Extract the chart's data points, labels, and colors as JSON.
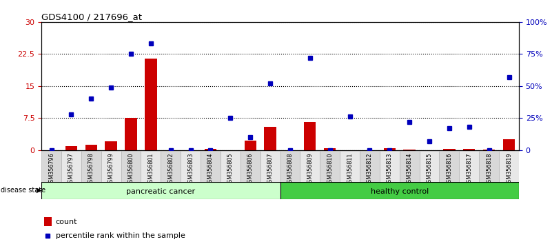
{
  "title": "GDS4100 / 217696_at",
  "samples": [
    "GSM356796",
    "GSM356797",
    "GSM356798",
    "GSM356799",
    "GSM356800",
    "GSM356801",
    "GSM356802",
    "GSM356803",
    "GSM356804",
    "GSM356805",
    "GSM356806",
    "GSM356807",
    "GSM356808",
    "GSM356809",
    "GSM356810",
    "GSM356811",
    "GSM356812",
    "GSM356813",
    "GSM356814",
    "GSM356815",
    "GSM356816",
    "GSM356817",
    "GSM356818",
    "GSM356819"
  ],
  "count": [
    0,
    1.0,
    1.3,
    2.0,
    7.5,
    21.5,
    0,
    0,
    0.3,
    0,
    2.2,
    5.5,
    0,
    6.5,
    0.5,
    0,
    0,
    0.4,
    0.1,
    0,
    0.3,
    0.3,
    0.1,
    2.5
  ],
  "percentile": [
    0,
    28,
    40,
    49,
    75,
    83,
    0,
    0,
    0,
    25,
    10,
    52,
    0,
    72,
    0,
    26,
    0,
    0,
    22,
    7,
    17,
    18,
    0,
    57
  ],
  "ylim_left": [
    0,
    30
  ],
  "ylim_right": [
    0,
    100
  ],
  "yticks_left": [
    0,
    7.5,
    15,
    22.5,
    30
  ],
  "yticks_right": [
    0,
    25,
    50,
    75,
    100
  ],
  "ytick_labels_left": [
    "0",
    "7.5",
    "15",
    "22.5",
    "30"
  ],
  "ytick_labels_right": [
    "0",
    "25%",
    "50%",
    "75%",
    "100%"
  ],
  "bar_color": "#cc0000",
  "dot_color": "#0000bb",
  "pancreatic_color": "#ccffcc",
  "healthy_color": "#44cc44",
  "bg_color": "#ffffff",
  "label_color_left": "#cc0000",
  "label_color_right": "#0000bb",
  "disease_state_label": "disease state",
  "pancreatic_label": "pancreatic cancer",
  "healthy_label": "healthy control",
  "legend_count": "count",
  "legend_pct": "percentile rank within the sample",
  "n_pancreatic": 12,
  "n_healthy": 12
}
